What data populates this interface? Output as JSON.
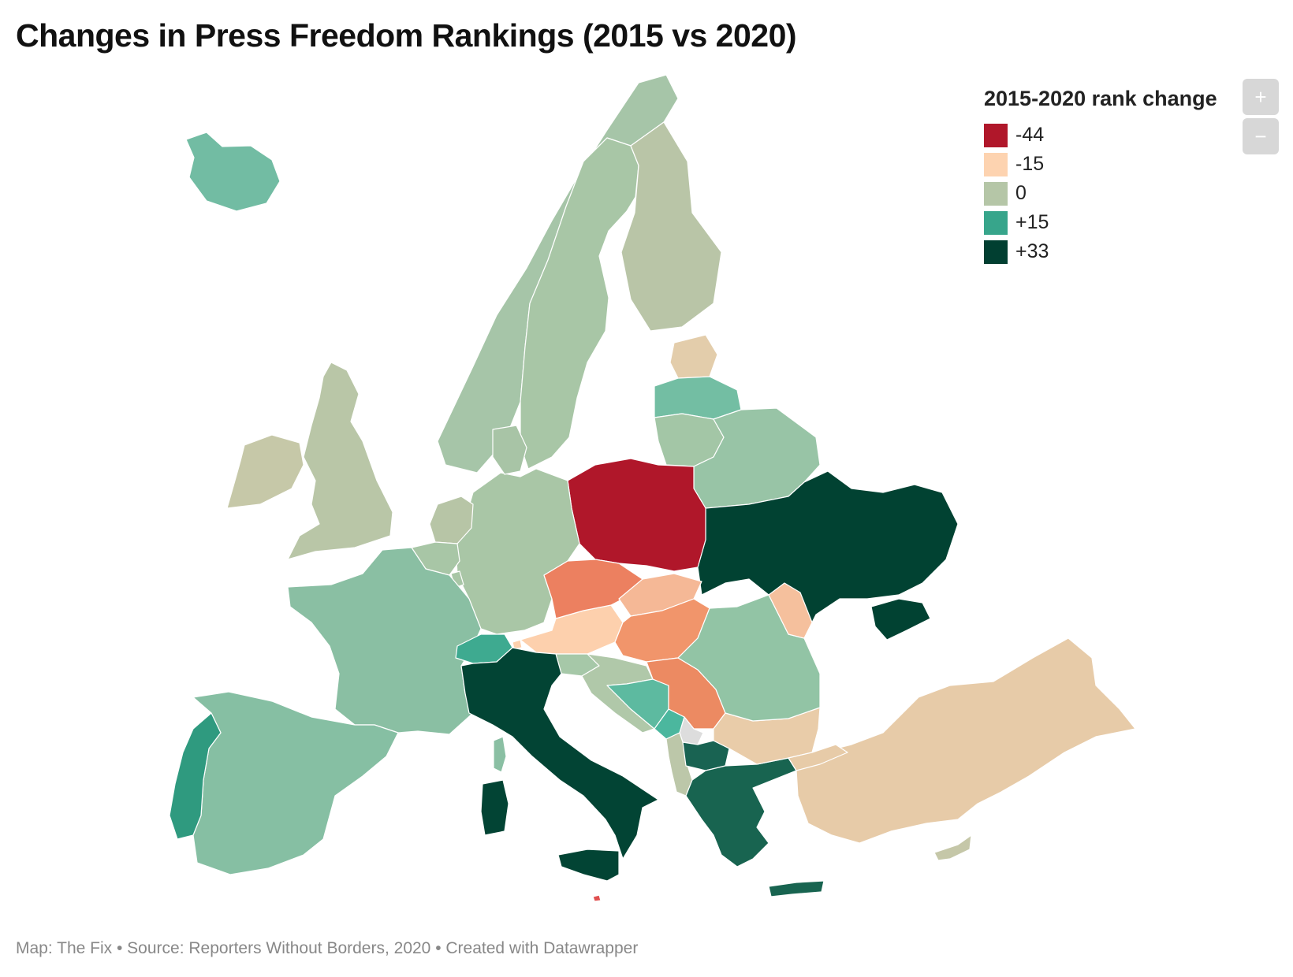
{
  "title": "Changes in Press Freedom Rankings (2015 vs 2020)",
  "legend": {
    "title": "2015-2020 rank change",
    "items": [
      {
        "label": "-44",
        "color": "#b0172a"
      },
      {
        "label": "-15",
        "color": "#fdd3b0"
      },
      {
        "label": "0",
        "color": "#b5c6a7"
      },
      {
        "label": "+15",
        "color": "#37a58b"
      },
      {
        "label": "+33",
        "color": "#013f31"
      }
    ]
  },
  "controls": {
    "zoom_in": "+",
    "zoom_out": "−"
  },
  "footer": "Map: The Fix • Source: Reporters Without Borders, 2020 • Created with Datawrapper",
  "chart_data": {
    "type": "choropleth",
    "color_scale": {
      "min": -44,
      "max": 33,
      "stops": [
        -44,
        -15,
        0,
        15,
        33
      ]
    },
    "regions": [
      {
        "id": "poland",
        "color": "#b0172a"
      },
      {
        "id": "czechia",
        "color": "#ec8060"
      },
      {
        "id": "serbia",
        "color": "#ec8a62"
      },
      {
        "id": "hungary",
        "color": "#f1956b"
      },
      {
        "id": "slovakia",
        "color": "#f5b896"
      },
      {
        "id": "austria",
        "color": "#fdd0ad"
      },
      {
        "id": "moldova",
        "color": "#f5c09d"
      },
      {
        "id": "liechtenstein",
        "color": "#fdd0ad"
      },
      {
        "id": "turkey",
        "color": "#e7cba8"
      },
      {
        "id": "estonia",
        "color": "#e3cdab"
      },
      {
        "id": "bulgaria",
        "color": "#e9cca9"
      },
      {
        "id": "united-kingdom",
        "color": "#b9c6a7"
      },
      {
        "id": "ireland",
        "color": "#c6c8a8"
      },
      {
        "id": "finland",
        "color": "#b9c5a7"
      },
      {
        "id": "norway",
        "color": "#a6c5a8"
      },
      {
        "id": "sweden",
        "color": "#a8c6a6"
      },
      {
        "id": "denmark",
        "color": "#a8c4a6"
      },
      {
        "id": "germany",
        "color": "#a9c6a6"
      },
      {
        "id": "netherlands",
        "color": "#b7c5a6"
      },
      {
        "id": "belgium",
        "color": "#a8c6a6"
      },
      {
        "id": "luxembourg",
        "color": "#a8c6a6"
      },
      {
        "id": "lithuania",
        "color": "#a3c6a6"
      },
      {
        "id": "belarus",
        "color": "#98c4a6"
      },
      {
        "id": "slovenia",
        "color": "#a6c8a8"
      },
      {
        "id": "croatia",
        "color": "#b0c8a9"
      },
      {
        "id": "albania",
        "color": "#bcc7a9"
      },
      {
        "id": "cyprus",
        "color": "#c5c7a8"
      },
      {
        "id": "romania",
        "color": "#92c4a5"
      },
      {
        "id": "france",
        "color": "#8abfa3"
      },
      {
        "id": "spain",
        "color": "#86bfa3"
      },
      {
        "id": "iceland",
        "color": "#72bca3"
      },
      {
        "id": "latvia",
        "color": "#73bea3"
      },
      {
        "id": "bosnia",
        "color": "#5dbaa0"
      },
      {
        "id": "montenegro",
        "color": "#4bb79e"
      },
      {
        "id": "switzerland",
        "color": "#3eaa90"
      },
      {
        "id": "portugal",
        "color": "#2f9a7f"
      },
      {
        "id": "north-macedonia",
        "color": "#196352"
      },
      {
        "id": "greece",
        "color": "#186450"
      },
      {
        "id": "italy",
        "color": "#024434"
      },
      {
        "id": "ukraine",
        "color": "#014232"
      },
      {
        "id": "kosovo",
        "color": "#dddddd"
      },
      {
        "id": "malta",
        "color": "#e05050"
      }
    ]
  }
}
